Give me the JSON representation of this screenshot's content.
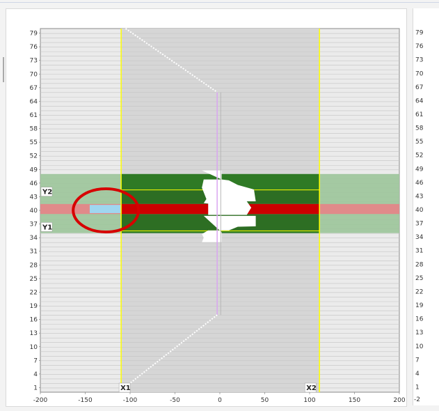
{
  "chart_data": {
    "type": "heatmap",
    "y_ticks": [
      79,
      76,
      73,
      70,
      67,
      64,
      61,
      58,
      55,
      52,
      49,
      46,
      43,
      40,
      37,
      34,
      31,
      28,
      25,
      22,
      19,
      16,
      13,
      10,
      7,
      4,
      1
    ],
    "x_ticks": [
      -200,
      -150,
      -100,
      -50,
      0,
      50,
      100,
      150,
      200
    ],
    "xlim": [
      -200,
      200
    ],
    "ylim": [
      0,
      80
    ],
    "x1": -110,
    "x2": 111,
    "y1": 35.5,
    "y2": 44.5,
    "x1_label": "X1",
    "x2_label": "X2",
    "y1_label": "Y1",
    "y2_label": "Y2",
    "green_band": [
      35,
      48
    ],
    "dark_green_band": [
      35.5,
      44.5
    ],
    "red_band": [
      39.2,
      41.4
    ],
    "light_blue_segment": {
      "x": [
        -145,
        -110
      ],
      "y": [
        39.4,
        41.2
      ]
    },
    "highlight_circle": {
      "cx": -127,
      "cy": 40
    },
    "colors": {
      "gray_region": "#d6d6d6",
      "outer": "#ebebeb",
      "green_light": "#9cc59a",
      "green_dark": "#2d6e23",
      "red": "#cc0000",
      "red_outer": "#e08a8a",
      "cursor": "#ffff00",
      "circle": "#d60000",
      "blue": "#9fd6f0"
    }
  },
  "right_panel": {
    "y_ticks": [
      79,
      76,
      73,
      70,
      67,
      64,
      61,
      58,
      55,
      52,
      49,
      46,
      43,
      40,
      37,
      34,
      31,
      28,
      25,
      22,
      19,
      16,
      13,
      10,
      7,
      4,
      1
    ],
    "x_tick": "-2"
  }
}
